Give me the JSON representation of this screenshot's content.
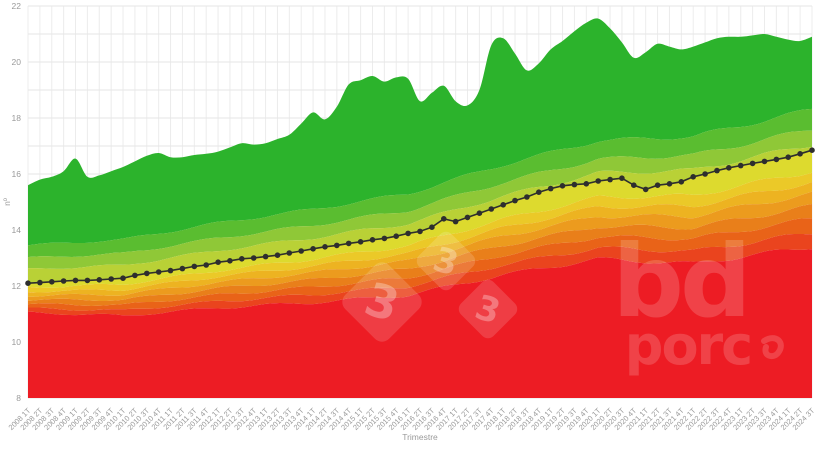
{
  "chart_data": {
    "type": "area",
    "title": "",
    "xlabel": "Trimestre",
    "ylabel": "nº",
    "ylim": [
      8,
      22
    ],
    "yticks_labeled": [
      8,
      10,
      12,
      14,
      16,
      18,
      20,
      22
    ],
    "grid": "on",
    "legend": "none",
    "categories": [
      "2008 1T",
      "2008 2T",
      "2008 3T",
      "2008 4T",
      "2009 1T",
      "2009 2T",
      "2009 3T",
      "2009 4T",
      "2010 1T",
      "2010 2T",
      "2010 3T",
      "2010 4T",
      "2011 1T",
      "2011 2T",
      "2011 3T",
      "2011 4T",
      "2012 1T",
      "2012 2T",
      "2012 3T",
      "2012 4T",
      "2013 1T",
      "2013 2T",
      "2013 3T",
      "2013 4T",
      "2014 1T",
      "2014 2T",
      "2014 3T",
      "2014 4T",
      "2015 1T",
      "2015 2T",
      "2015 3T",
      "2015 4T",
      "2016 1T",
      "2016 2T",
      "2016 3T",
      "2016 4T",
      "2017 1T",
      "2017 2T",
      "2017 3T",
      "2017 4T",
      "2018 1T",
      "2018 2T",
      "2018 3T",
      "2018 4T",
      "2019 1T",
      "2019 2T",
      "2019 3T",
      "2019 4T",
      "2020 1T",
      "2020 2T",
      "2020 3T",
      "2020 4T",
      "2021 1T",
      "2021 2T",
      "2021 3T",
      "2021 4T",
      "2022 1T",
      "2022 2T",
      "2022 3T",
      "2022 4T",
      "2023 1T",
      "2023 2T",
      "2023 3T",
      "2023 4T",
      "2024 1T",
      "2024 2T",
      "2024 3T"
    ],
    "mean_series": {
      "color": "#2e2e2e",
      "values": [
        12.1,
        12.12,
        12.15,
        12.18,
        12.2,
        12.2,
        12.22,
        12.25,
        12.28,
        12.38,
        12.45,
        12.5,
        12.55,
        12.62,
        12.7,
        12.75,
        12.85,
        12.9,
        12.97,
        13.0,
        13.05,
        13.1,
        13.18,
        13.25,
        13.33,
        13.4,
        13.45,
        13.52,
        13.58,
        13.65,
        13.7,
        13.78,
        13.88,
        13.95,
        14.1,
        14.4,
        14.3,
        14.45,
        14.6,
        14.75,
        14.9,
        15.05,
        15.18,
        15.35,
        15.48,
        15.58,
        15.62,
        15.65,
        15.75,
        15.8,
        15.85,
        15.6,
        15.45,
        15.6,
        15.65,
        15.72,
        15.9,
        16.0,
        16.12,
        16.22,
        16.3,
        16.38,
        16.45,
        16.52,
        16.6,
        16.72,
        16.85
      ]
    },
    "max_series": {
      "values": [
        15.6,
        15.8,
        15.9,
        16.1,
        16.55,
        15.9,
        15.95,
        16.1,
        16.25,
        16.45,
        16.65,
        16.75,
        16.6,
        16.6,
        16.68,
        16.72,
        16.8,
        16.95,
        17.1,
        17.05,
        17.1,
        17.25,
        17.4,
        17.8,
        18.2,
        17.95,
        18.4,
        19.2,
        19.35,
        19.5,
        19.3,
        19.45,
        19.4,
        18.6,
        18.9,
        19.15,
        18.6,
        18.45,
        19.0,
        20.6,
        20.85,
        20.3,
        19.7,
        19.95,
        20.45,
        20.75,
        21.1,
        21.4,
        21.55,
        21.2,
        20.7,
        20.15,
        20.35,
        20.65,
        20.55,
        20.45,
        20.55,
        20.7,
        20.85,
        20.9,
        20.9,
        20.95,
        21.0,
        20.9,
        20.8,
        20.75,
        20.9
      ]
    },
    "boundary_anchor_index": [
      0,
      8,
      16,
      24,
      32,
      40,
      48,
      56,
      66
    ],
    "boundaries": {
      "g1": [
        13.45,
        13.66,
        14.25,
        14.74,
        15.3,
        16.33,
        17.19,
        17.34,
        18.3
      ],
      "g2": [
        13.0,
        13.16,
        13.71,
        14.17,
        14.7,
        15.7,
        16.53,
        16.67,
        17.6
      ],
      "g3": [
        12.6,
        12.74,
        13.27,
        13.72,
        14.23,
        15.21,
        16.03,
        16.14,
        17.05
      ],
      "y1": [
        11.95,
        12.06,
        12.55,
        12.96,
        13.44,
        14.38,
        15.16,
        15.23,
        16.1
      ],
      "y2": [
        11.8,
        11.87,
        12.34,
        12.71,
        13.16,
        14.07,
        14.82,
        14.86,
        15.7
      ],
      "y3": [
        11.65,
        11.7,
        12.13,
        12.48,
        12.89,
        13.78,
        14.49,
        14.5,
        15.3
      ],
      "o1": [
        11.5,
        11.51,
        11.91,
        12.22,
        12.6,
        13.45,
        14.13,
        14.09,
        14.85
      ],
      "o2": [
        11.35,
        11.32,
        11.68,
        11.96,
        12.3,
        13.11,
        13.76,
        13.69,
        14.4
      ],
      "o3": [
        11.2,
        11.13,
        11.45,
        11.69,
        11.99,
        12.76,
        13.36,
        13.24,
        13.9
      ],
      "r1": [
        11.05,
        10.94,
        11.22,
        11.41,
        11.67,
        12.4,
        12.96,
        12.8,
        13.4
      ]
    },
    "bands": [
      {
        "upper": "max",
        "lower": "g1",
        "color": "#2cb32c"
      },
      {
        "upper": "g1",
        "lower": "g2",
        "color": "#5abd30"
      },
      {
        "upper": "g2",
        "lower": "g3",
        "color": "#8fc837"
      },
      {
        "upper": "g3",
        "lower": "mean",
        "color": "#b9d136"
      },
      {
        "upper": "mean",
        "lower": "y1",
        "color": "#ddda2e"
      },
      {
        "upper": "y1",
        "lower": "y2",
        "color": "#ebc928"
      },
      {
        "upper": "y2",
        "lower": "y3",
        "color": "#edb321"
      },
      {
        "upper": "y3",
        "lower": "o1",
        "color": "#ec9b1e"
      },
      {
        "upper": "o1",
        "lower": "o2",
        "color": "#e97f1a"
      },
      {
        "upper": "o2",
        "lower": "o3",
        "color": "#e96318"
      },
      {
        "upper": "o3",
        "lower": "r1",
        "color": "#ea441e"
      },
      {
        "upper": "r1",
        "lower": "bottom",
        "color": "#ed1c24"
      }
    ],
    "colors": {
      "grid_vertical": "#ececec",
      "grid_horizontal": "#e6e6e6",
      "axis_text": "#9a9a9a",
      "mean_line": "#2e2e2e",
      "base_red": "#ed1c24",
      "top_green": "#2cb32c"
    }
  },
  "axes": {
    "x_title": "Trimestre",
    "y_title": "nº",
    "y_tick_labels": [
      "22",
      "20",
      "18",
      "16",
      "14",
      "12",
      "10",
      "8"
    ]
  },
  "watermark": {
    "logo333": {
      "glyph": "3"
    },
    "bdporc": {
      "line1": "bd",
      "line2": "porc"
    }
  }
}
